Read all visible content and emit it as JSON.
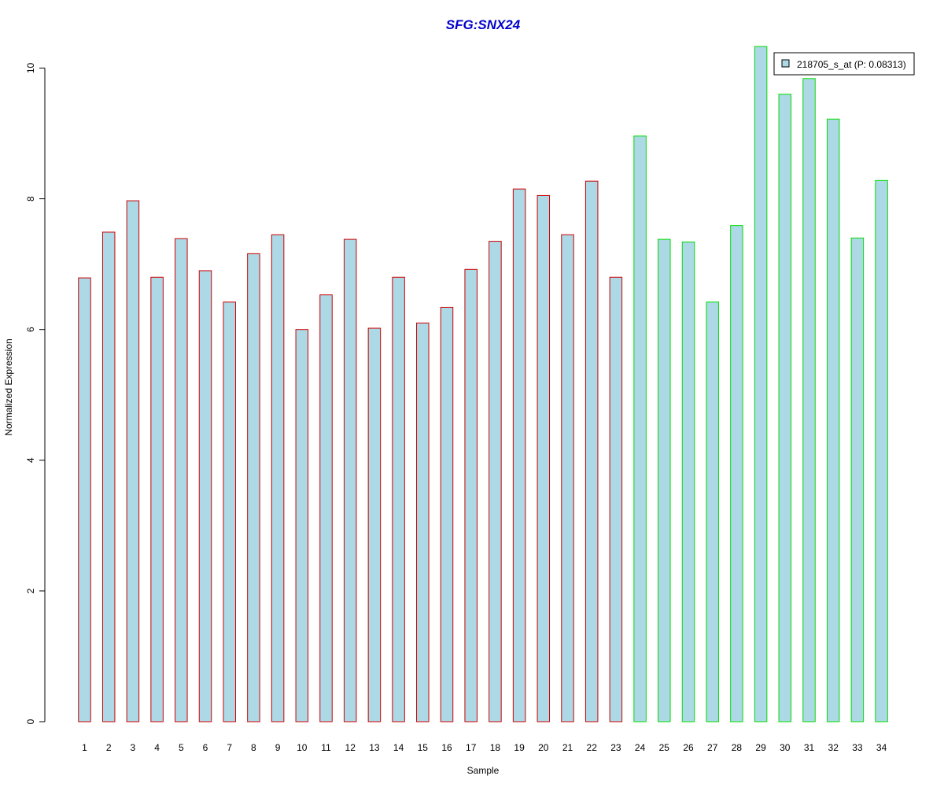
{
  "chart_data": {
    "type": "bar",
    "title": "SFG:SNX24",
    "xlabel": "Sample",
    "ylabel": "Normalized Expression",
    "categories": [
      "1",
      "2",
      "3",
      "4",
      "5",
      "6",
      "7",
      "8",
      "9",
      "10",
      "11",
      "12",
      "13",
      "14",
      "15",
      "16",
      "17",
      "18",
      "19",
      "20",
      "21",
      "22",
      "23",
      "24",
      "25",
      "26",
      "27",
      "28",
      "29",
      "30",
      "31",
      "32",
      "33",
      "34"
    ],
    "series": [
      {
        "name": "218705_s_at (P: 0.08313)",
        "values": [
          6.79,
          7.49,
          7.97,
          6.8,
          7.39,
          6.9,
          6.42,
          7.16,
          7.45,
          6.0,
          6.53,
          7.38,
          6.02,
          6.8,
          6.1,
          6.34,
          6.92,
          7.35,
          8.15,
          8.05,
          7.45,
          8.27,
          6.8,
          8.96,
          7.38,
          7.34,
          6.42,
          7.59,
          10.33,
          9.6,
          9.84,
          9.22,
          7.4,
          8.28
        ]
      }
    ],
    "group_border_colors": [
      "#cc0000",
      "#cc0000",
      "#cc0000",
      "#cc0000",
      "#cc0000",
      "#cc0000",
      "#cc0000",
      "#cc0000",
      "#cc0000",
      "#cc0000",
      "#cc0000",
      "#cc0000",
      "#cc0000",
      "#cc0000",
      "#cc0000",
      "#cc0000",
      "#cc0000",
      "#cc0000",
      "#cc0000",
      "#cc0000",
      "#cc0000",
      "#cc0000",
      "#cc0000",
      "#00dd00",
      "#00dd00",
      "#00dd00",
      "#00dd00",
      "#00dd00",
      "#00dd00",
      "#00dd00",
      "#00dd00",
      "#00dd00",
      "#00dd00",
      "#00dd00"
    ],
    "bar_fill": "#add8e6",
    "title_color": "#0000cc",
    "ylim": [
      0,
      10.4
    ],
    "yticks": [
      0,
      2,
      4,
      6,
      8,
      10
    ],
    "grid": false,
    "legend_position": "top-right"
  }
}
